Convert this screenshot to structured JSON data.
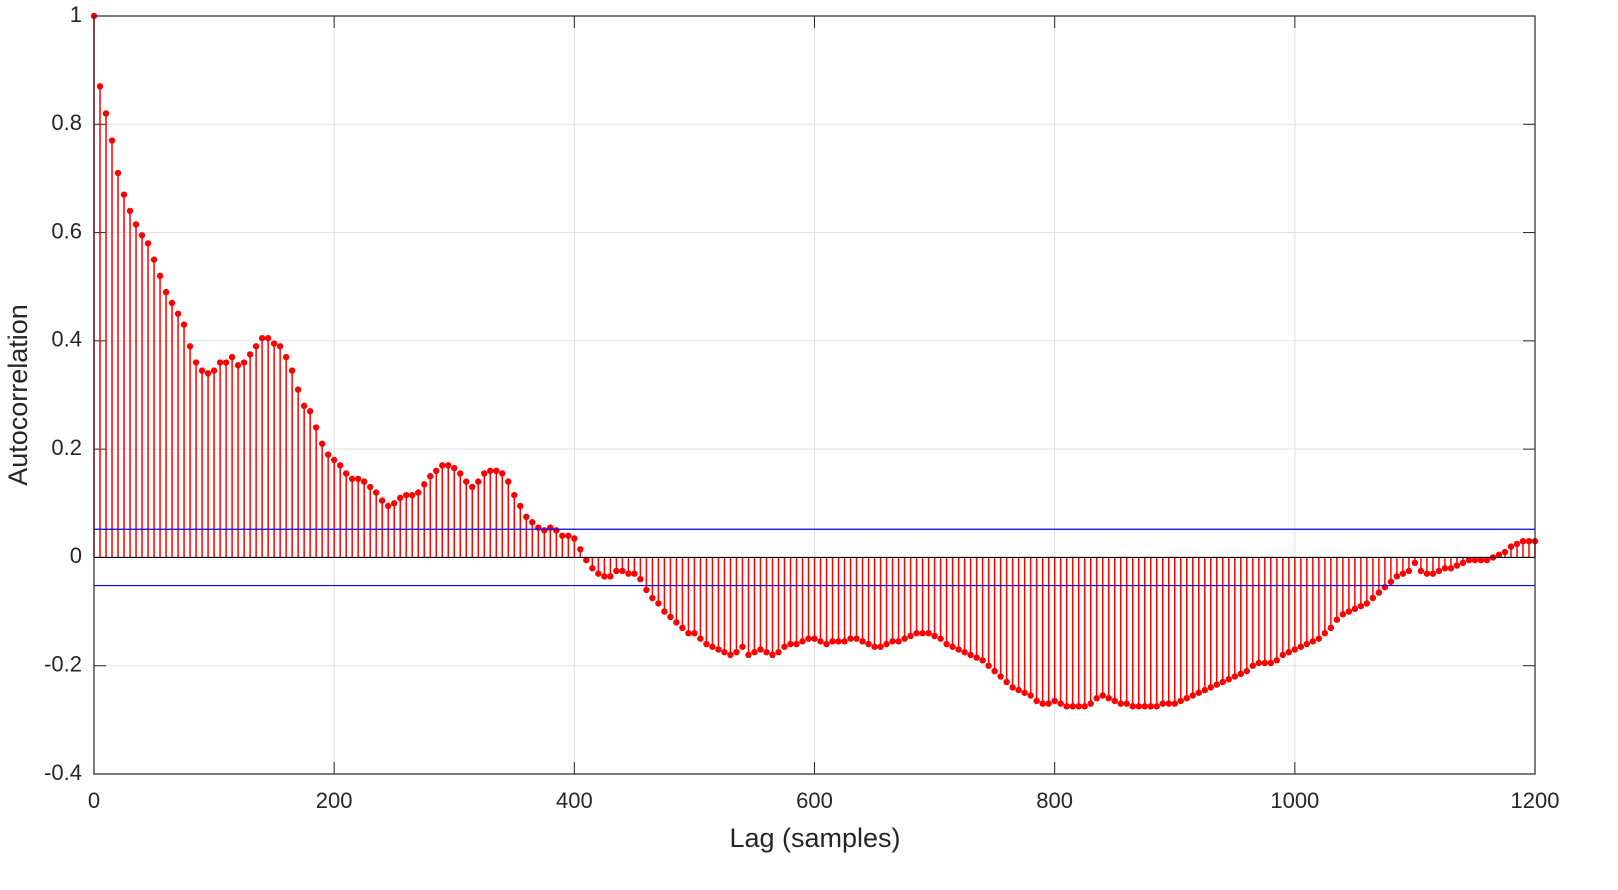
{
  "chart_data": {
    "type": "stem",
    "xlabel": "Lag (samples)",
    "ylabel": "Autocorrelation",
    "xlim": [
      0,
      1200
    ],
    "ylim": [
      -0.4,
      1
    ],
    "xticks": [
      0,
      200,
      400,
      600,
      800,
      1000,
      1200
    ],
    "yticks": [
      -0.4,
      -0.2,
      0,
      0.2,
      0.4,
      0.6,
      0.8,
      1
    ],
    "grid": true,
    "confidence_bounds": {
      "color": "#0000ff",
      "values": [
        -0.052,
        0.052
      ]
    },
    "series": [
      {
        "color": "#ff0000",
        "x": [
          0,
          5,
          10,
          15,
          20,
          25,
          30,
          35,
          40,
          45,
          50,
          55,
          60,
          65,
          70,
          75,
          80,
          85,
          90,
          95,
          100,
          105,
          110,
          115,
          120,
          125,
          130,
          135,
          140,
          145,
          150,
          155,
          160,
          165,
          170,
          175,
          180,
          185,
          190,
          195,
          200,
          205,
          210,
          215,
          220,
          225,
          230,
          235,
          240,
          245,
          250,
          255,
          260,
          265,
          270,
          275,
          280,
          285,
          290,
          295,
          300,
          305,
          310,
          315,
          320,
          325,
          330,
          335,
          340,
          345,
          350,
          355,
          360,
          365,
          370,
          375,
          380,
          385,
          390,
          395,
          400,
          405,
          410,
          415,
          420,
          425,
          430,
          435,
          440,
          445,
          450,
          455,
          460,
          465,
          470,
          475,
          480,
          485,
          490,
          495,
          500,
          505,
          510,
          515,
          520,
          525,
          530,
          535,
          540,
          545,
          550,
          555,
          560,
          565,
          570,
          575,
          580,
          585,
          590,
          595,
          600,
          605,
          610,
          615,
          620,
          625,
          630,
          635,
          640,
          645,
          650,
          655,
          660,
          665,
          670,
          675,
          680,
          685,
          690,
          695,
          700,
          705,
          710,
          715,
          720,
          725,
          730,
          735,
          740,
          745,
          750,
          755,
          760,
          765,
          770,
          775,
          780,
          785,
          790,
          795,
          800,
          805,
          810,
          815,
          820,
          825,
          830,
          835,
          840,
          845,
          850,
          855,
          860,
          865,
          870,
          875,
          880,
          885,
          890,
          895,
          900,
          905,
          910,
          915,
          920,
          925,
          930,
          935,
          940,
          945,
          950,
          955,
          960,
          965,
          970,
          975,
          980,
          985,
          990,
          995,
          1000,
          1005,
          1010,
          1015,
          1020,
          1025,
          1030,
          1035,
          1040,
          1045,
          1050,
          1055,
          1060,
          1065,
          1070,
          1075,
          1080,
          1085,
          1090,
          1095,
          1100,
          1105,
          1110,
          1115,
          1120,
          1125,
          1130,
          1135,
          1140,
          1145,
          1150,
          1155,
          1160,
          1165,
          1170,
          1175,
          1180,
          1185,
          1190,
          1195,
          1200
        ],
        "values": [
          1.0,
          0.87,
          0.82,
          0.77,
          0.71,
          0.67,
          0.64,
          0.615,
          0.595,
          0.58,
          0.55,
          0.52,
          0.49,
          0.47,
          0.45,
          0.43,
          0.39,
          0.36,
          0.345,
          0.34,
          0.345,
          0.36,
          0.36,
          0.37,
          0.355,
          0.36,
          0.375,
          0.39,
          0.405,
          0.405,
          0.395,
          0.39,
          0.37,
          0.345,
          0.31,
          0.28,
          0.27,
          0.24,
          0.21,
          0.19,
          0.18,
          0.17,
          0.155,
          0.145,
          0.145,
          0.14,
          0.13,
          0.12,
          0.105,
          0.095,
          0.1,
          0.11,
          0.115,
          0.115,
          0.12,
          0.135,
          0.15,
          0.16,
          0.17,
          0.17,
          0.165,
          0.155,
          0.14,
          0.13,
          0.14,
          0.155,
          0.16,
          0.16,
          0.155,
          0.14,
          0.115,
          0.095,
          0.075,
          0.065,
          0.055,
          0.05,
          0.055,
          0.05,
          0.04,
          0.04,
          0.035,
          0.015,
          -0.005,
          -0.02,
          -0.03,
          -0.035,
          -0.035,
          -0.025,
          -0.025,
          -0.03,
          -0.03,
          -0.04,
          -0.06,
          -0.075,
          -0.085,
          -0.1,
          -0.11,
          -0.12,
          -0.13,
          -0.14,
          -0.14,
          -0.15,
          -0.16,
          -0.165,
          -0.17,
          -0.175,
          -0.18,
          -0.175,
          -0.165,
          -0.18,
          -0.175,
          -0.17,
          -0.175,
          -0.18,
          -0.175,
          -0.165,
          -0.16,
          -0.16,
          -0.155,
          -0.15,
          -0.15,
          -0.155,
          -0.16,
          -0.155,
          -0.155,
          -0.155,
          -0.15,
          -0.15,
          -0.155,
          -0.16,
          -0.165,
          -0.165,
          -0.16,
          -0.155,
          -0.155,
          -0.15,
          -0.145,
          -0.14,
          -0.14,
          -0.14,
          -0.145,
          -0.15,
          -0.16,
          -0.165,
          -0.17,
          -0.175,
          -0.18,
          -0.185,
          -0.19,
          -0.2,
          -0.21,
          -0.22,
          -0.23,
          -0.24,
          -0.245,
          -0.25,
          -0.255,
          -0.265,
          -0.27,
          -0.27,
          -0.265,
          -0.27,
          -0.275,
          -0.275,
          -0.275,
          -0.275,
          -0.27,
          -0.26,
          -0.255,
          -0.26,
          -0.265,
          -0.27,
          -0.27,
          -0.275,
          -0.275,
          -0.275,
          -0.275,
          -0.275,
          -0.27,
          -0.27,
          -0.27,
          -0.265,
          -0.26,
          -0.255,
          -0.25,
          -0.245,
          -0.24,
          -0.235,
          -0.23,
          -0.225,
          -0.22,
          -0.215,
          -0.21,
          -0.2,
          -0.195,
          -0.195,
          -0.195,
          -0.19,
          -0.18,
          -0.175,
          -0.17,
          -0.165,
          -0.16,
          -0.155,
          -0.15,
          -0.14,
          -0.13,
          -0.115,
          -0.105,
          -0.1,
          -0.095,
          -0.09,
          -0.085,
          -0.075,
          -0.065,
          -0.055,
          -0.045,
          -0.035,
          -0.03,
          -0.025,
          -0.01,
          -0.025,
          -0.03,
          -0.03,
          -0.025,
          -0.02,
          -0.02,
          -0.015,
          -0.01,
          -0.005,
          -0.005,
          -0.005,
          -0.005,
          0,
          0.005,
          0.01,
          0.02,
          0.025,
          0.03,
          0.03,
          0.03
        ]
      }
    ]
  }
}
